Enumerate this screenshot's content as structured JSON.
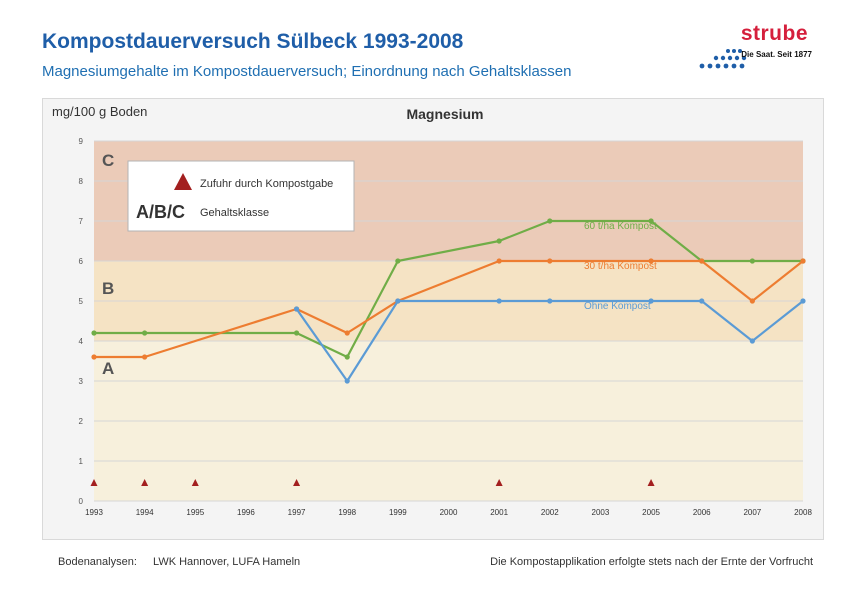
{
  "header": {
    "title": "Kompostdauerversuch Sülbeck 1993-2008",
    "subtitle": "Magnesiumgehalte im Kompostdauerversuch; Einordnung nach Gehaltsklassen"
  },
  "logo": {
    "brand": "strube",
    "tagline": "Die Saat. Seit 1877",
    "brand_color": "#d51f3c",
    "dots_color": "#1f5ea8"
  },
  "footer": {
    "analyses_label": "Bodenanalysen:",
    "analyses_value": "LWK Hannover, LUFA Hameln",
    "note": "Die Kompostapplikation erfolgte stets nach der Ernte der Vorfrucht"
  },
  "chart_data": {
    "type": "line",
    "title": "Magnesium",
    "ylabel": "mg/100 g Boden",
    "xlabel": "",
    "ylim": [
      0,
      9
    ],
    "yticks": [
      "0",
      "1",
      "2",
      "3",
      "4",
      "5",
      "6",
      "7",
      "8",
      "9"
    ],
    "grid": true,
    "categories": [
      "1993",
      "1994",
      "1995",
      "1996",
      "1997",
      "1998",
      "1999",
      "2000",
      "2001",
      "2002",
      "2003",
      "2005",
      "2006",
      "2007",
      "2008"
    ],
    "bands": [
      {
        "label": "A",
        "from": 0,
        "to": 4,
        "color": "#f7f0dc"
      },
      {
        "label": "B",
        "from": 4,
        "to": 6,
        "color": "#f5e3c4"
      },
      {
        "label": "C",
        "from": 6,
        "to": 9,
        "color": "#ebcbb8"
      }
    ],
    "series": [
      {
        "name": "60 t/ha Kompost",
        "color": "#70ad47",
        "values": [
          4.2,
          4.2,
          null,
          null,
          4.2,
          3.6,
          6.0,
          null,
          6.5,
          7.0,
          null,
          7.0,
          6.0,
          6.0,
          6.0
        ]
      },
      {
        "name": "30 t/ha Kompost",
        "color": "#ed7d31",
        "values": [
          3.6,
          3.6,
          null,
          null,
          4.8,
          4.2,
          5.0,
          null,
          6.0,
          6.0,
          null,
          6.0,
          6.0,
          5.0,
          6.0
        ]
      },
      {
        "name": "Ohne Kompost",
        "color": "#5b9bd5",
        "values": [
          null,
          null,
          null,
          null,
          4.8,
          3.0,
          5.0,
          null,
          5.0,
          5.0,
          null,
          5.0,
          5.0,
          4.0,
          5.0
        ]
      }
    ],
    "markers": {
      "label": "Zufuhr durch Kompostgabe",
      "color": "#a31f1f",
      "years": [
        "1993",
        "1994",
        "1995",
        "1997",
        "2001",
        "2005"
      ]
    },
    "legend": {
      "marker_text": "Zufuhr durch Kompostgabe",
      "class_symbol": "A/B/C",
      "class_text": "Gehaltsklasse",
      "position": "top-left"
    }
  }
}
